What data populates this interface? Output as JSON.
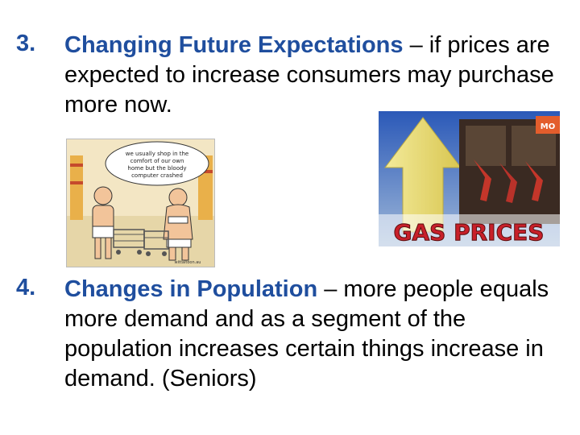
{
  "slide": {
    "items": [
      {
        "number": "3.",
        "term": "Changing Future Expectations",
        "rest": " – if prices are expected to increase consumers may purchase more now."
      },
      {
        "number": "4.",
        "term": "Changes in Population",
        "rest": " – more people equals more demand and as a segment of the population increases certain things increase in demand. (Seniors)"
      }
    ],
    "cartoon_caption": "we usually shop in the comfort of our own home but the bloody computer crashed",
    "cartoon_signature": "wittaltoon.au",
    "gas_image_title": "GAS PRICES",
    "gas_pump_text": "MO"
  },
  "colors": {
    "accent": "#1f4e9e",
    "gas_title": "#c8202a"
  }
}
